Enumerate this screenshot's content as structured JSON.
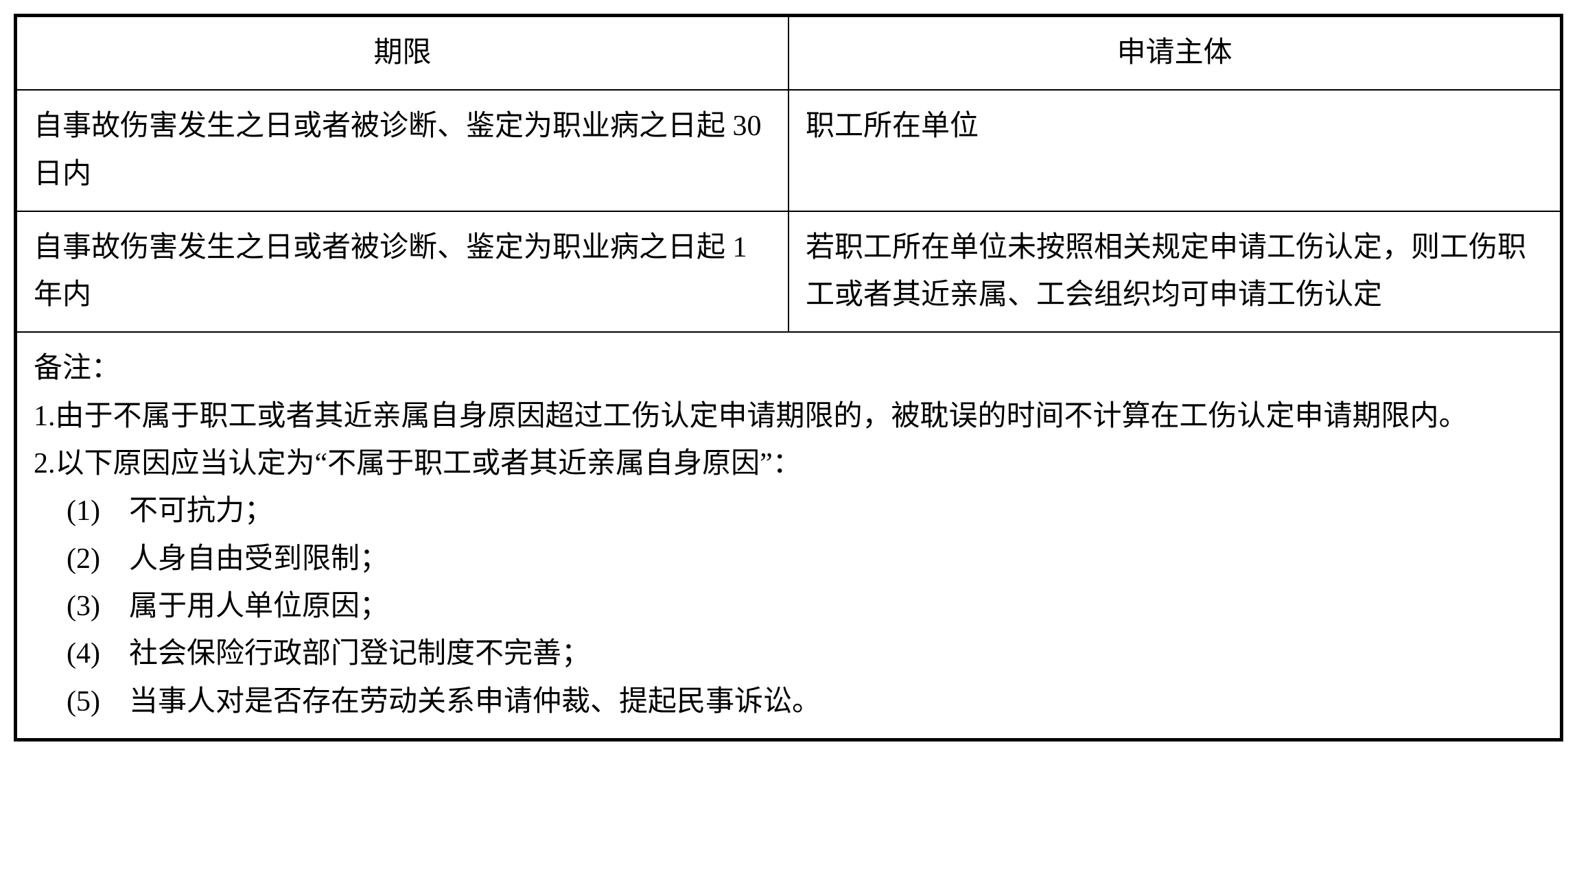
{
  "table": {
    "headers": {
      "col1": "期限",
      "col2": "申请主体"
    },
    "rows": [
      {
        "col1": "自事故伤害发生之日或者被诊断、鉴定为职业病之日起 30 日内",
        "col2": "职工所在单位"
      },
      {
        "col1": "自事故伤害发生之日或者被诊断、鉴定为职业病之日起 1 年内",
        "col2": "若职工所在单位未按照相关规定申请工伤认定，则工伤职工或者其近亲属、工会组织均可申请工伤认定"
      }
    ],
    "notes": {
      "title": "备注：",
      "item1": "1.由于不属于职工或者其近亲属自身原因超过工伤认定申请期限的，被耽误的时间不计算在工伤认定申请期限内。",
      "item2": "2.以下原因应当认定为“不属于职工或者其近亲属自身原因”：",
      "sub1": "(1)　不可抗力；",
      "sub2": "(2)　人身自由受到限制；",
      "sub3": "(3)　属于用人单位原因；",
      "sub4": "(4)　社会保险行政部门登记制度不完善；",
      "sub5": "(5)　当事人对是否存在劳动关系申请仲裁、提起民事诉讼。"
    }
  },
  "styling": {
    "border_color": "#000000",
    "background_color": "#ffffff",
    "text_color": "#000000",
    "font_size": 42,
    "line_height": 1.65,
    "border_width_outer": 3,
    "border_width_inner": 2,
    "cell_padding": "18px 24px",
    "column_widths": [
      "50%",
      "50%"
    ]
  }
}
